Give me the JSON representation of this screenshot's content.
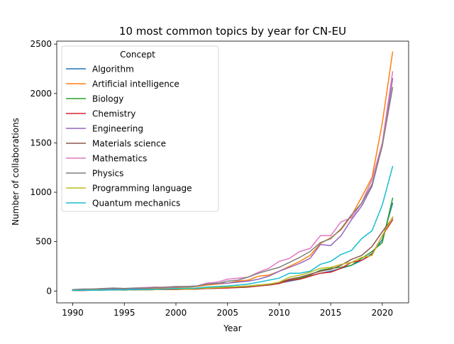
{
  "chart_data": {
    "type": "line",
    "title": "10 most common topics by year for CN-EU",
    "xlabel": "Year",
    "ylabel": "Number of collaborations",
    "xlim": [
      1988.45,
      2022.55
    ],
    "ylim": [
      -120,
      2530
    ],
    "xticks": [
      1990,
      1995,
      2000,
      2005,
      2010,
      2015,
      2020
    ],
    "yticks": [
      0,
      500,
      1000,
      1500,
      2000,
      2500
    ],
    "grid": false,
    "legend": {
      "title": "Concept",
      "placement": "top-left"
    },
    "x": [
      1990,
      1991,
      1992,
      1993,
      1994,
      1995,
      1996,
      1997,
      1998,
      1999,
      2000,
      2001,
      2002,
      2003,
      2004,
      2005,
      2006,
      2007,
      2008,
      2009,
      2010,
      2011,
      2012,
      2013,
      2014,
      2015,
      2016,
      2017,
      2018,
      2019,
      2020,
      2021
    ],
    "series": [
      {
        "name": "Algorithm",
        "color": "#1f77b4",
        "values": [
          5,
          8,
          10,
          12,
          15,
          12,
          10,
          12,
          15,
          18,
          20,
          22,
          25,
          30,
          35,
          40,
          45,
          50,
          60,
          70,
          80,
          100,
          120,
          150,
          180,
          200,
          230,
          260,
          310,
          380,
          520,
          890
        ]
      },
      {
        "name": "Artificial intelligence",
        "color": "#ff7f0e",
        "values": [
          10,
          15,
          15,
          20,
          25,
          20,
          20,
          22,
          25,
          30,
          35,
          40,
          45,
          60,
          70,
          80,
          100,
          110,
          150,
          160,
          200,
          250,
          300,
          360,
          480,
          540,
          620,
          760,
          950,
          1150,
          1700,
          2420
        ]
      },
      {
        "name": "Biology",
        "color": "#2ca02c",
        "values": [
          5,
          8,
          8,
          10,
          12,
          10,
          12,
          12,
          15,
          15,
          18,
          18,
          20,
          25,
          28,
          35,
          35,
          40,
          55,
          60,
          80,
          110,
          130,
          160,
          210,
          230,
          240,
          260,
          330,
          400,
          490,
          940
        ]
      },
      {
        "name": "Chemistry",
        "color": "#d62728",
        "values": [
          5,
          5,
          8,
          10,
          10,
          10,
          12,
          12,
          15,
          15,
          15,
          18,
          20,
          25,
          28,
          30,
          35,
          40,
          50,
          60,
          75,
          110,
          120,
          150,
          180,
          190,
          230,
          290,
          310,
          370,
          560,
          720
        ]
      },
      {
        "name": "Engineering",
        "color": "#9467bd",
        "values": [
          10,
          15,
          15,
          20,
          25,
          22,
          25,
          28,
          35,
          35,
          40,
          45,
          50,
          70,
          80,
          80,
          90,
          100,
          120,
          150,
          200,
          240,
          280,
          330,
          470,
          460,
          560,
          720,
          860,
          1060,
          1470,
          2150
        ]
      },
      {
        "name": "Materials science",
        "color": "#8c564b",
        "values": [
          5,
          8,
          8,
          10,
          12,
          12,
          15,
          15,
          18,
          20,
          20,
          22,
          25,
          30,
          35,
          40,
          40,
          45,
          55,
          65,
          85,
          120,
          140,
          170,
          200,
          220,
          260,
          320,
          360,
          450,
          600,
          740
        ]
      },
      {
        "name": "Mathematics",
        "color": "#e377c2",
        "values": [
          10,
          15,
          20,
          25,
          30,
          25,
          30,
          35,
          40,
          35,
          45,
          45,
          50,
          80,
          90,
          120,
          130,
          140,
          190,
          230,
          300,
          330,
          400,
          430,
          560,
          560,
          700,
          740,
          890,
          1130,
          1500,
          2220
        ]
      },
      {
        "name": "Physics",
        "color": "#7f7f7f",
        "values": [
          15,
          20,
          20,
          25,
          30,
          25,
          30,
          30,
          35,
          40,
          45,
          45,
          50,
          70,
          75,
          100,
          110,
          140,
          180,
          210,
          240,
          290,
          340,
          400,
          490,
          530,
          630,
          770,
          890,
          1080,
          1470,
          2060
        ]
      },
      {
        "name": "Programming language",
        "color": "#bcbd22",
        "values": [
          5,
          8,
          10,
          12,
          12,
          10,
          12,
          12,
          15,
          18,
          20,
          20,
          25,
          30,
          35,
          40,
          45,
          50,
          60,
          70,
          90,
          140,
          160,
          190,
          230,
          240,
          270,
          290,
          340,
          360,
          560,
          750
        ]
      },
      {
        "name": "Quantum mechanics",
        "color": "#17becf",
        "values": [
          5,
          8,
          8,
          10,
          12,
          12,
          15,
          15,
          18,
          20,
          25,
          28,
          30,
          40,
          45,
          50,
          60,
          70,
          90,
          110,
          130,
          180,
          180,
          200,
          270,
          300,
          370,
          410,
          530,
          610,
          870,
          1260
        ]
      }
    ]
  }
}
